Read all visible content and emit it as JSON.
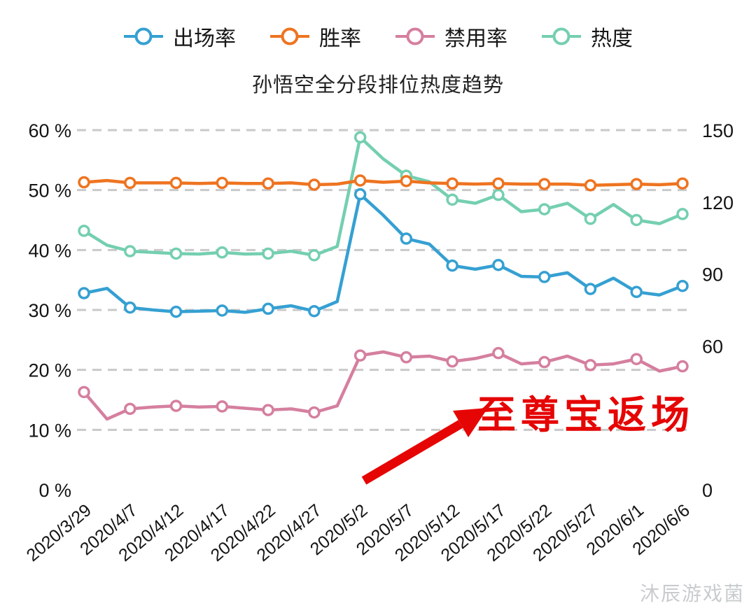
{
  "title": "孙悟空全分段排位热度趋势",
  "legend": [
    {
      "id": "pick-rate",
      "label": "出场率",
      "color": "#35a0d2"
    },
    {
      "id": "win-rate",
      "label": "胜率",
      "color": "#ee7420"
    },
    {
      "id": "ban-rate",
      "label": "禁用率",
      "color": "#d57f9f"
    },
    {
      "id": "heat",
      "label": "热度",
      "color": "#74cfb0"
    }
  ],
  "annotation": {
    "text": "至尊宝返场",
    "color": "#e60505"
  },
  "watermark": "沐辰游戏菌",
  "chart_data": {
    "type": "line",
    "title": "孙悟空全分段排位热度趋势",
    "legend_position": "top",
    "grid": true,
    "grid_values": [
      10,
      20,
      30,
      40,
      50,
      60
    ],
    "marker_every": 2,
    "x_labels": [
      "2020/3/29",
      "2020/4/7",
      "2020/4/12",
      "2020/4/17",
      "2020/4/22",
      "2020/4/27",
      "2020/5/2",
      "2020/5/7",
      "2020/5/12",
      "2020/5/17",
      "2020/5/22",
      "2020/5/27",
      "2020/6/1",
      "2020/6/6"
    ],
    "left_axis": {
      "min": 0,
      "max": 60,
      "values": [
        60,
        50,
        40,
        30,
        20,
        10,
        0
      ],
      "labels": [
        "60 %",
        "50 %",
        "40 %",
        "30 %",
        "20 %",
        "10 %",
        "0 %"
      ]
    },
    "right_axis": {
      "min": 0,
      "max": 150,
      "values": [
        150,
        120,
        90,
        60,
        0
      ],
      "labels": [
        "150",
        "120",
        "90",
        "60",
        "0"
      ]
    },
    "series": [
      {
        "id": "pick-rate",
        "name": "出场率",
        "axis": "left",
        "color": "#35a0d2",
        "values": [
          32.8,
          33.6,
          30.4,
          30,
          29.7,
          29.8,
          29.9,
          29.6,
          30.2,
          30.7,
          29.8,
          31.4,
          49.3,
          45.8,
          41.9,
          41,
          37.4,
          36.8,
          37.5,
          35.6,
          35.5,
          36.2,
          33.5,
          35.3,
          33,
          32.5,
          34
        ]
      },
      {
        "id": "win-rate",
        "name": "胜率",
        "axis": "left",
        "color": "#ee7420",
        "values": [
          51.3,
          51.6,
          51.2,
          51.2,
          51.2,
          51.1,
          51.2,
          51.1,
          51.1,
          51.2,
          50.9,
          51,
          51.6,
          51.3,
          51.5,
          51.2,
          51.1,
          51,
          51.1,
          51,
          51,
          51,
          50.8,
          50.9,
          51,
          50.9,
          51.1
        ]
      },
      {
        "id": "ban-rate",
        "name": "禁用率",
        "axis": "left",
        "color": "#d57f9f",
        "values": [
          16.3,
          11.8,
          13.5,
          13.8,
          14,
          13.8,
          13.9,
          13.6,
          13.3,
          13.5,
          12.9,
          14,
          22.4,
          23,
          22.1,
          22.3,
          21.4,
          21.9,
          22.8,
          21,
          21.3,
          22.3,
          20.8,
          21,
          21.8,
          19.8,
          20.6
        ]
      },
      {
        "id": "heat",
        "name": "热度",
        "axis": "right",
        "color": "#74cfb0",
        "values": [
          108,
          102,
          99.5,
          99,
          98.5,
          98.3,
          99,
          98.3,
          98.5,
          99.5,
          97.8,
          101.5,
          147,
          138,
          131,
          128.5,
          121,
          119.5,
          123,
          116,
          117,
          119.5,
          113,
          119,
          112.5,
          111,
          115
        ]
      }
    ],
    "colors": {
      "grid": "#c9c9c9",
      "axis_text": "#141414",
      "annotation": "#e60505"
    }
  }
}
